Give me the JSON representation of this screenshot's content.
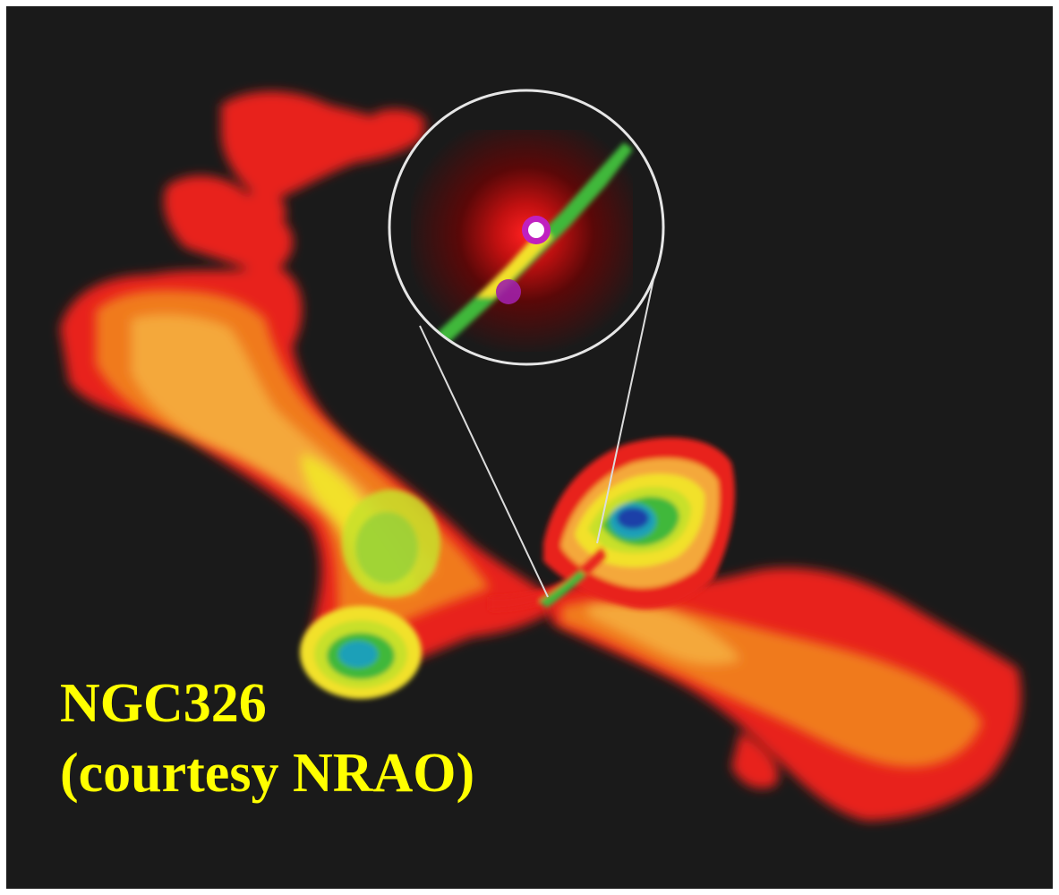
{
  "caption": {
    "line1": "NGC326",
    "line2": "(courtesy NRAO)",
    "color": "#ffff00"
  },
  "image": {
    "subject": "NGC326",
    "background_color": "#1a1a1a",
    "palette": [
      "#e8201a",
      "#f07a1e",
      "#f4a83a",
      "#f2e12a",
      "#c8e02a",
      "#3fb83a",
      "#1fa0b8",
      "#1a3fa8",
      "#c020c0",
      "#ffffff"
    ]
  }
}
